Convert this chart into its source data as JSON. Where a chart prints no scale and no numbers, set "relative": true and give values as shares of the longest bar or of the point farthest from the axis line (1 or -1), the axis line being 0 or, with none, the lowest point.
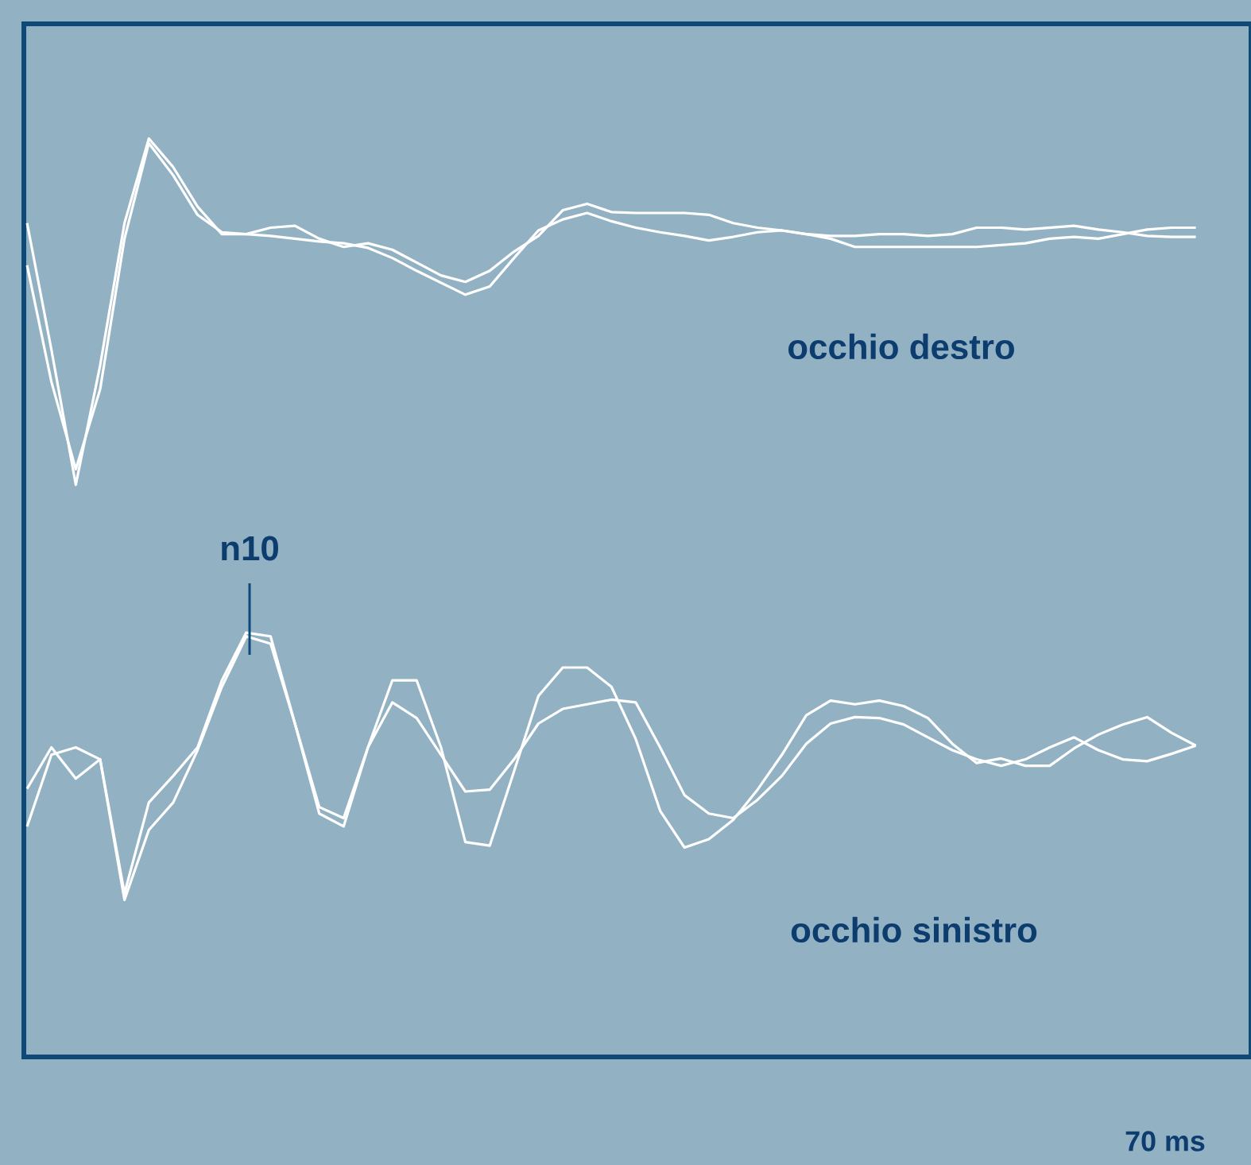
{
  "chart_data": {
    "type": "line",
    "relative": true,
    "xlabel": "70 ms",
    "annotations": [
      "occhio destro",
      "occhio sinistro",
      "n10"
    ],
    "categories": [
      null,
      null,
      null,
      null,
      null,
      null,
      null,
      null,
      null,
      null,
      null,
      null,
      null,
      null,
      null,
      null,
      null,
      null,
      null,
      null,
      null,
      null,
      null,
      null,
      null,
      null,
      null,
      null,
      null,
      null,
      null,
      null,
      null,
      null,
      null,
      null,
      null,
      null,
      null,
      null,
      null,
      null,
      null,
      null,
      null,
      null,
      null,
      null,
      null
    ],
    "series": [
      {
        "color": "#ffffff",
        "values": [
          0.908,
          0.77,
          0.623,
          0.753,
          0.908,
          1.0,
          0.969,
          0.926,
          0.896,
          0.896,
          0.903,
          0.905,
          0.891,
          0.882,
          0.886,
          0.879,
          0.865,
          0.851,
          0.844,
          0.856,
          0.877,
          0.894,
          0.922,
          0.929,
          0.92,
          0.919,
          0.919,
          0.919,
          0.917,
          0.908,
          0.903,
          0.9,
          0.896,
          0.894,
          0.894,
          0.896,
          0.896,
          0.894,
          0.896,
          0.903,
          0.903,
          0.901,
          0.903,
          0.905,
          0.901,
          0.898,
          0.894,
          0.893,
          0.893
        ]
      },
      {
        "color": "#ffffff",
        "values": [
          0.862,
          0.735,
          0.64,
          0.727,
          0.891,
          0.995,
          0.96,
          0.917,
          0.898,
          0.896,
          0.894,
          0.891,
          0.888,
          0.886,
          0.881,
          0.87,
          0.856,
          0.843,
          0.83,
          0.839,
          0.87,
          0.9,
          0.912,
          0.919,
          0.91,
          0.903,
          0.898,
          0.894,
          0.889,
          0.893,
          0.898,
          0.9,
          0.896,
          0.891,
          0.882,
          0.882,
          0.882,
          0.882,
          0.882,
          0.882,
          0.884,
          0.886,
          0.891,
          0.893,
          0.891,
          0.896,
          0.901,
          0.903,
          0.903
        ]
      },
      {
        "color": "#ffffff",
        "values": [
          0.251,
          0.329,
          0.337,
          0.324,
          0.171,
          0.247,
          0.277,
          0.334,
          0.403,
          0.458,
          0.45,
          0.363,
          0.265,
          0.251,
          0.337,
          0.41,
          0.41,
          0.337,
          0.234,
          0.23,
          0.311,
          0.393,
          0.424,
          0.424,
          0.403,
          0.346,
          0.268,
          0.228,
          0.237,
          0.258,
          0.291,
          0.329,
          0.372,
          0.388,
          0.384,
          0.388,
          0.382,
          0.369,
          0.341,
          0.32,
          0.325,
          0.317,
          0.317,
          0.336,
          0.351,
          0.362,
          0.37,
          0.353,
          0.339
        ]
      },
      {
        "color": "#ffffff",
        "values": [
          0.292,
          0.337,
          0.303,
          0.324,
          0.178,
          0.277,
          0.306,
          0.337,
          0.41,
          0.462,
          0.458,
          0.363,
          0.272,
          0.26,
          0.337,
          0.386,
          0.369,
          0.329,
          0.289,
          0.291,
          0.324,
          0.363,
          0.379,
          0.384,
          0.389,
          0.386,
          0.337,
          0.285,
          0.265,
          0.26,
          0.28,
          0.306,
          0.341,
          0.363,
          0.37,
          0.369,
          0.362,
          0.348,
          0.334,
          0.324,
          0.317,
          0.324,
          0.337,
          0.348,
          0.334,
          0.324,
          0.322,
          0.33,
          0.339
        ]
      }
    ]
  }
}
